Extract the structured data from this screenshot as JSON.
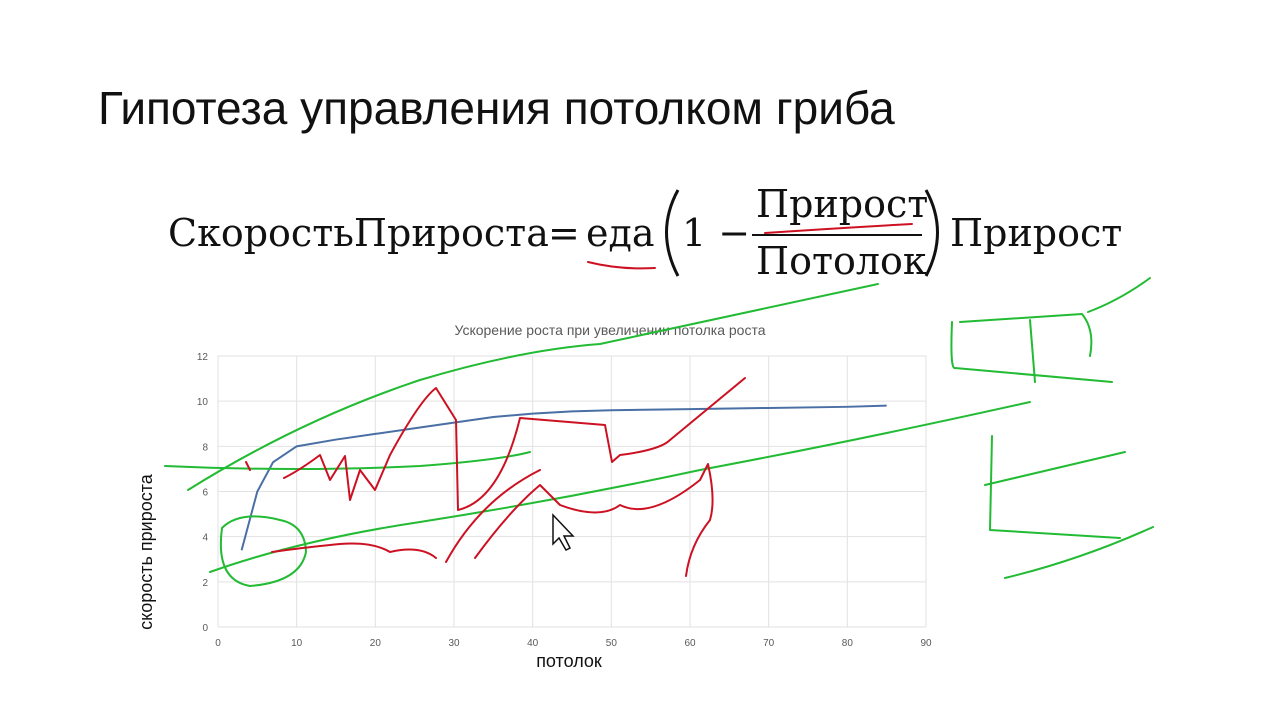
{
  "slide_title": "Гипотеза управления потолком гриба",
  "formula": {
    "lhs": "СкоростьПрироста",
    "equals": "=",
    "food": "еда",
    "one_minus": "1 −",
    "numerator": "Прирост",
    "denominator": "Потолок",
    "tail": "Прирост"
  },
  "chart_data": {
    "type": "line",
    "title": "Ускорение роста при увеличении потолка роста",
    "x_label": "потолок",
    "y_label": "скорость прироста",
    "x": [
      3,
      5,
      7,
      10,
      15,
      20,
      25,
      30,
      35,
      40,
      45,
      50,
      60,
      70,
      80,
      85
    ],
    "series": [
      {
        "name": "Скорость прироста",
        "color": "#4a6fa5",
        "values": [
          3.4,
          6.0,
          7.3,
          8.0,
          8.3,
          8.55,
          8.8,
          9.05,
          9.3,
          9.45,
          9.55,
          9.6,
          9.65,
          9.7,
          9.75,
          9.8
        ]
      }
    ],
    "xlim": [
      0,
      90
    ],
    "xticks": [
      0,
      10,
      20,
      30,
      40,
      50,
      60,
      70,
      80,
      90
    ],
    "ylim": [
      0,
      12
    ],
    "yticks": [
      0,
      2,
      4,
      6,
      8,
      10,
      12
    ],
    "grid": true
  }
}
